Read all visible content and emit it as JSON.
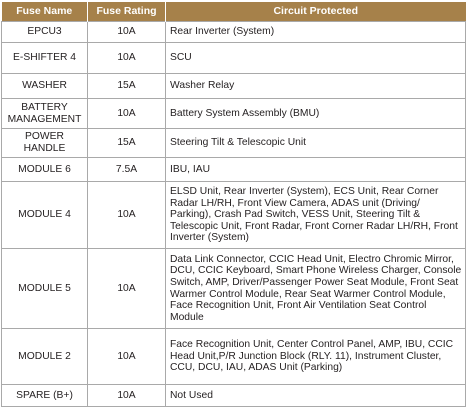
{
  "headers": {
    "fuse_name": "Fuse Name",
    "fuse_rating": "Fuse Rating",
    "circuit_protected": "Circuit Protected"
  },
  "rows": [
    {
      "name": "EPCU3",
      "rating": "10A",
      "circuit": "Rear Inverter (System)"
    },
    {
      "name": "E-SHIFTER 4",
      "rating": "10A",
      "circuit": "SCU"
    },
    {
      "name": "WASHER",
      "rating": "15A",
      "circuit": "Washer Relay"
    },
    {
      "name": "BATTERY MANAGEMENT",
      "rating": "10A",
      "circuit": "Battery System Assembly (BMU)"
    },
    {
      "name": "POWER HANDLE",
      "rating": "15A",
      "circuit": "Steering Tilt & Telescopic Unit"
    },
    {
      "name": "MODULE 6",
      "rating": "7.5A",
      "circuit": "IBU, IAU"
    },
    {
      "name": "MODULE 4",
      "rating": "10A",
      "circuit": "ELSD Unit, Rear Inverter (System), ECS Unit, Rear Corner Radar LH/RH, Front View Camera, ADAS unit (Driving/ Parking), Crash Pad Switch, VESS Unit, Steering Tilt & Telescopic Unit, Front Radar, Front Corner Radar LH/RH, Front Inverter (System)"
    },
    {
      "name": "MODULE 5",
      "rating": "10A",
      "circuit": "Data Link Connector, CCIC Head Unit, Electro Chromic Mirror, DCU, CCIC Keyboard, Smart Phone Wireless Charger, Console Switch, AMP, Driver/Passenger Power Seat Module, Front Seat Warmer Control Module, Rear Seat Warmer Control Module, Face Recognition Unit, Front Air Ventilation Seat Control Module"
    },
    {
      "name": "MODULE 2",
      "rating": "10A",
      "circuit": "Face Recognition Unit, Center Control Panel, AMP, IBU, CCIC Head Unit,P/R Junction Block (RLY. 11), Instrument Cluster, CCU, DCU, IAU, ADAS Unit (Parking)"
    },
    {
      "name": "SPARE (B+)",
      "rating": "10A",
      "circuit": "Not Used"
    }
  ]
}
